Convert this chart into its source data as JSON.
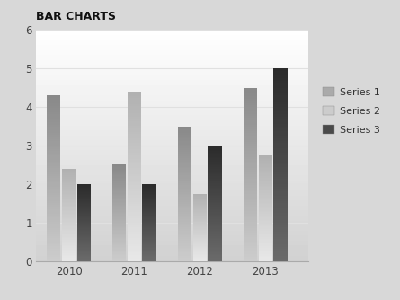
{
  "title": "BAR CHARTS",
  "categories": [
    "2010",
    "2011",
    "2012",
    "2013"
  ],
  "series": [
    {
      "name": "Series 1",
      "values": [
        4.3,
        2.5,
        3.5,
        4.5
      ],
      "color_top": "#888888",
      "color_bottom": "#cccccc"
    },
    {
      "name": "Series 2",
      "values": [
        2.4,
        4.4,
        1.75,
        2.75
      ],
      "color_top": "#b0b0b0",
      "color_bottom": "#e8e8e8"
    },
    {
      "name": "Series 3",
      "values": [
        2.0,
        2.0,
        3.0,
        5.0
      ],
      "color_top": "#2a2a2a",
      "color_bottom": "#6a6a6a"
    }
  ],
  "ylim": [
    0,
    6
  ],
  "yticks": [
    0,
    1,
    2,
    3,
    4,
    5,
    6
  ],
  "bar_width": 0.23,
  "bg_top": "#f8f8f8",
  "bg_bottom": "#d0d0d0",
  "grid_color": "#e0e0e0",
  "title_fontsize": 9,
  "tick_fontsize": 8.5,
  "legend_fontsize": 8
}
